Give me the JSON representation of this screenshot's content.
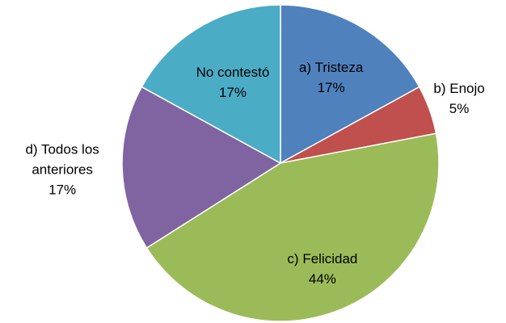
{
  "chart_data": {
    "type": "pie",
    "categories": [
      "a) Tristeza",
      "b) Enojo",
      "c) Felicidad",
      "d) Todos los anteriores",
      "No contestó"
    ],
    "values": [
      17,
      5,
      44,
      17,
      17
    ],
    "value_labels": [
      "17%",
      "5%",
      "44%",
      "17%",
      "17%"
    ],
    "colors": [
      "#4f81bd",
      "#c0504d",
      "#9bbb59",
      "#8064a2",
      "#4bacc6"
    ]
  }
}
